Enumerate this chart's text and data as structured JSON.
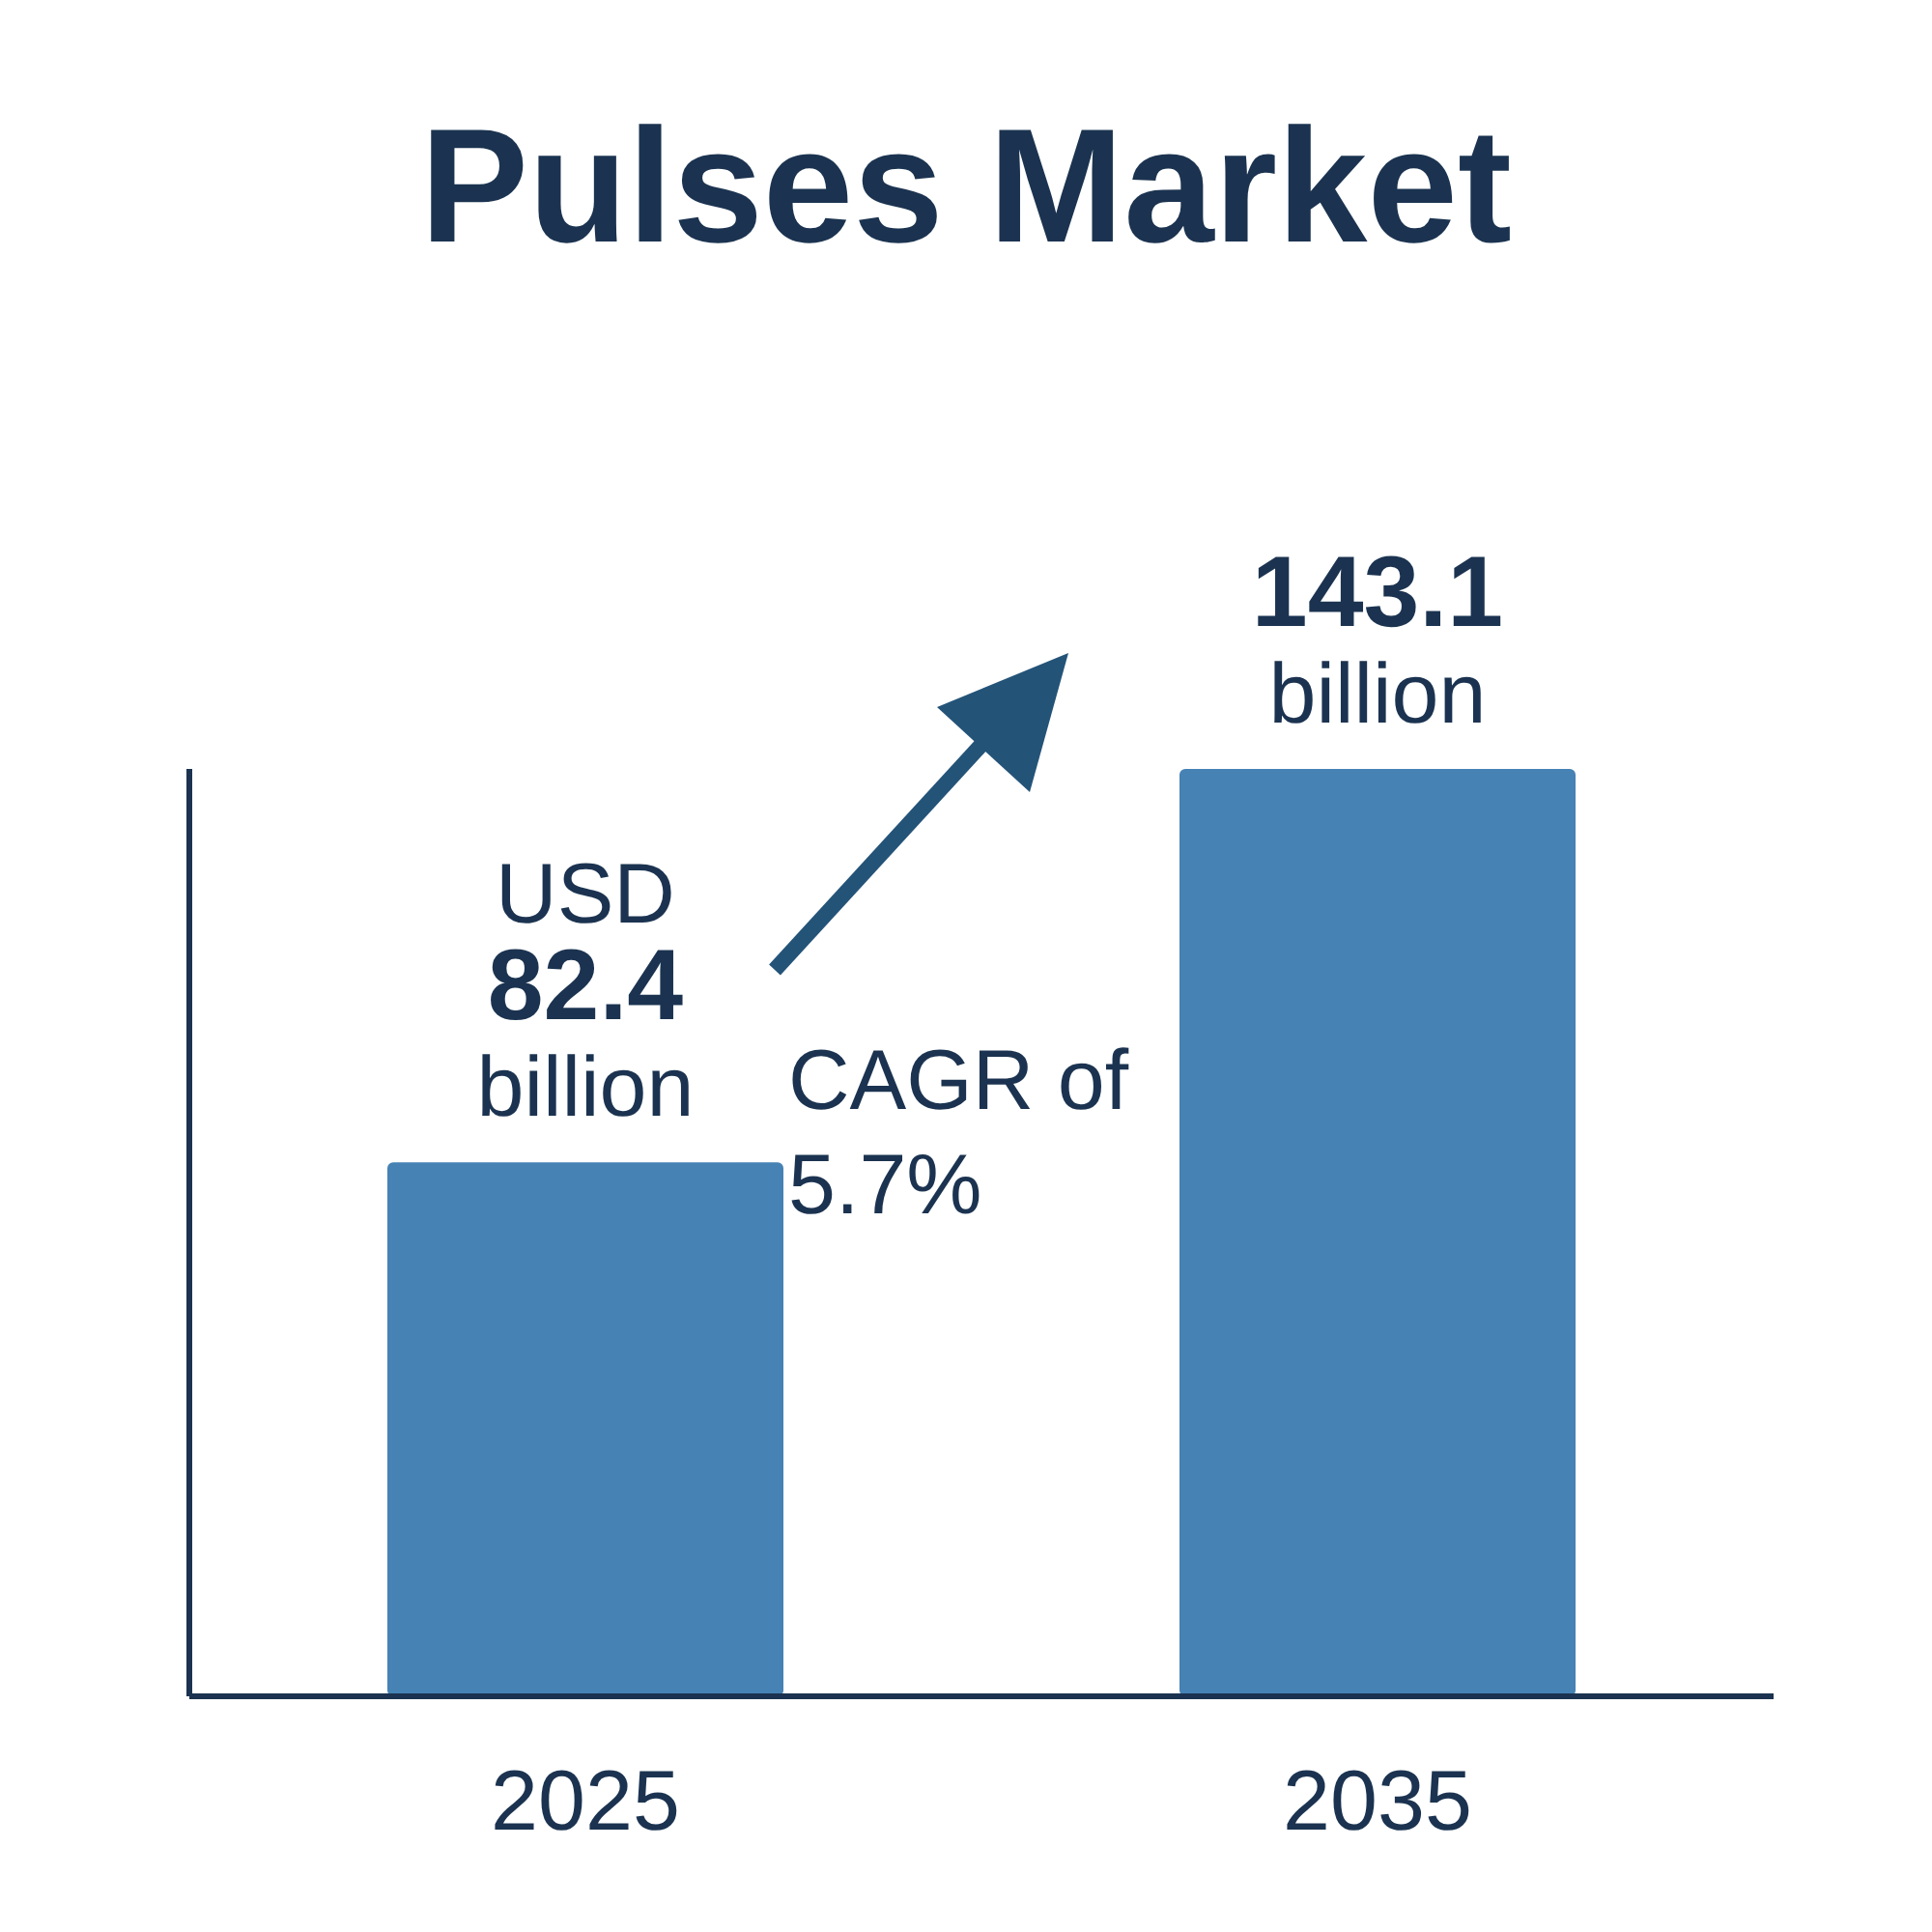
{
  "chart_data": {
    "type": "bar",
    "title": "Pulses Market",
    "categories": [
      "2025",
      "2035"
    ],
    "values": [
      82.4,
      143.1
    ],
    "color": "#4682b4",
    "value_labels": [
      "USD 82.4 billion",
      "143.1 billion"
    ],
    "annotations": [
      "CAGR of 5.7%"
    ],
    "grid": false
  }
}
